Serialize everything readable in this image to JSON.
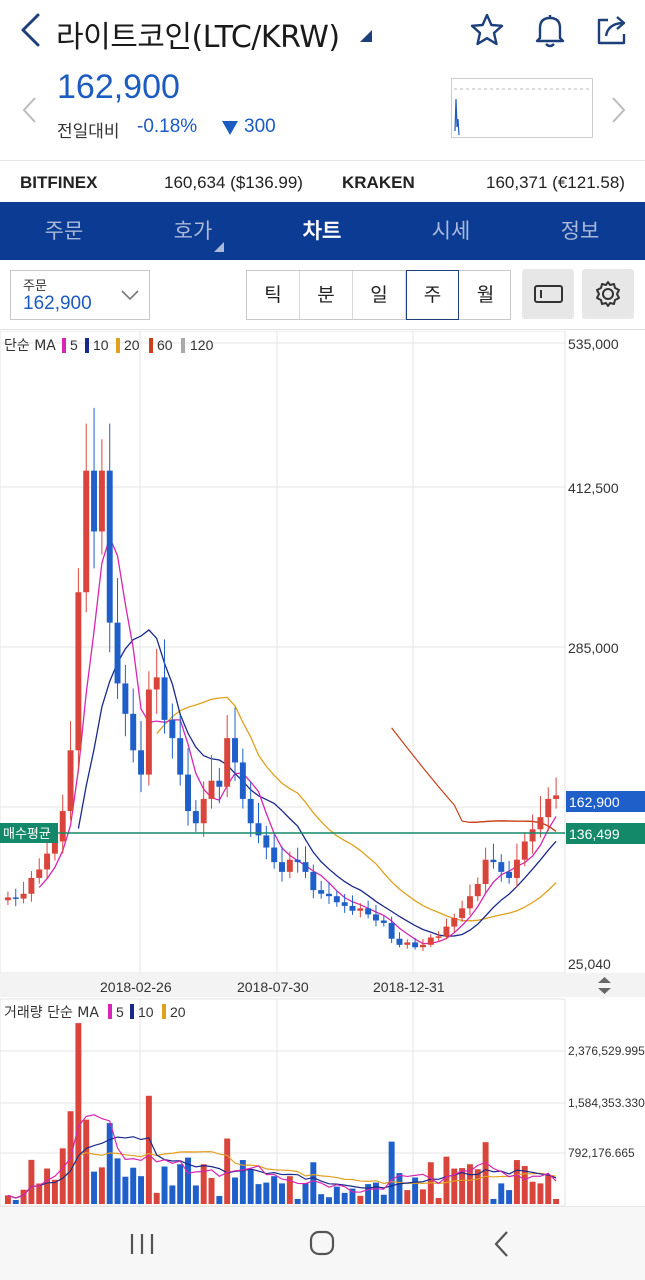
{
  "header": {
    "title": "라이트코인(LTC/KRW)",
    "icons": [
      "star-icon",
      "bell-icon",
      "share-icon"
    ]
  },
  "ticker": {
    "price": "162,900",
    "change_label": "전일대비",
    "change_pct": "-0.18%",
    "change_abs": "300",
    "direction": "down"
  },
  "exchanges": [
    {
      "name": "BITFINEX",
      "value": "160,634 ($136.99)"
    },
    {
      "name": "KRAKEN",
      "value": "160,371 (€121.58)"
    }
  ],
  "tabs": [
    {
      "label": "주문",
      "active": false
    },
    {
      "label": "호가",
      "active": false
    },
    {
      "label": "차트",
      "active": true
    },
    {
      "label": "시세",
      "active": false
    },
    {
      "label": "정보",
      "active": false
    }
  ],
  "order_select": {
    "label": "주문",
    "value": "162,900"
  },
  "periods": [
    {
      "label": "틱",
      "active": false
    },
    {
      "label": "분",
      "active": false
    },
    {
      "label": "일",
      "active": false
    },
    {
      "label": "주",
      "active": true
    },
    {
      "label": "월",
      "active": false
    }
  ],
  "colors": {
    "up": "#d9453c",
    "down": "#1f5fc9",
    "ma5": "#d626b3",
    "ma10": "#1b2a8a",
    "ma20": "#e0a020",
    "ma60": "#c9401a",
    "ma120": "#aaaaaa",
    "avg_line": "#14896a",
    "tab_bg": "#0b3b93"
  },
  "chart_data": [
    {
      "type": "candlestick",
      "legend": {
        "label": "단순 MA",
        "periods": [
          "5",
          "10",
          "20",
          "60",
          "120"
        ]
      },
      "y_ticks": [
        "535,000",
        "412,500",
        "285,000",
        "25,040"
      ],
      "ylim": [
        25040,
        535000
      ],
      "x_ticks": [
        "2018-02-26",
        "2018-07-30",
        "2018-12-31"
      ],
      "current_price_label": "162,900",
      "avg_price": {
        "label": "매수평균",
        "value": "136,499"
      },
      "candles_close": [
        79000,
        78000,
        82000,
        95000,
        102000,
        115000,
        125000,
        150000,
        200000,
        330000,
        430000,
        380000,
        430000,
        305000,
        255000,
        230000,
        200000,
        180000,
        250000,
        260000,
        225000,
        210000,
        180000,
        150000,
        140000,
        160000,
        175000,
        170000,
        210000,
        190000,
        160000,
        140000,
        130000,
        120000,
        108000,
        100000,
        110000,
        108000,
        100000,
        85000,
        82000,
        80000,
        75000,
        72000,
        68000,
        70000,
        65000,
        60000,
        58000,
        45000,
        40000,
        42000,
        38000,
        40000,
        46000,
        47000,
        55000,
        62000,
        70000,
        80000,
        90000,
        110000,
        108000,
        100000,
        95000,
        110000,
        125000,
        135000,
        145000,
        160000,
        162900
      ]
    },
    {
      "type": "bar",
      "legend": {
        "label": "거래량 단순 MA",
        "periods": [
          "5",
          "10",
          "20"
        ]
      },
      "y_ticks": [
        "2,376,529.995",
        "1,584,353.330",
        "792,176.665"
      ]
    }
  ]
}
